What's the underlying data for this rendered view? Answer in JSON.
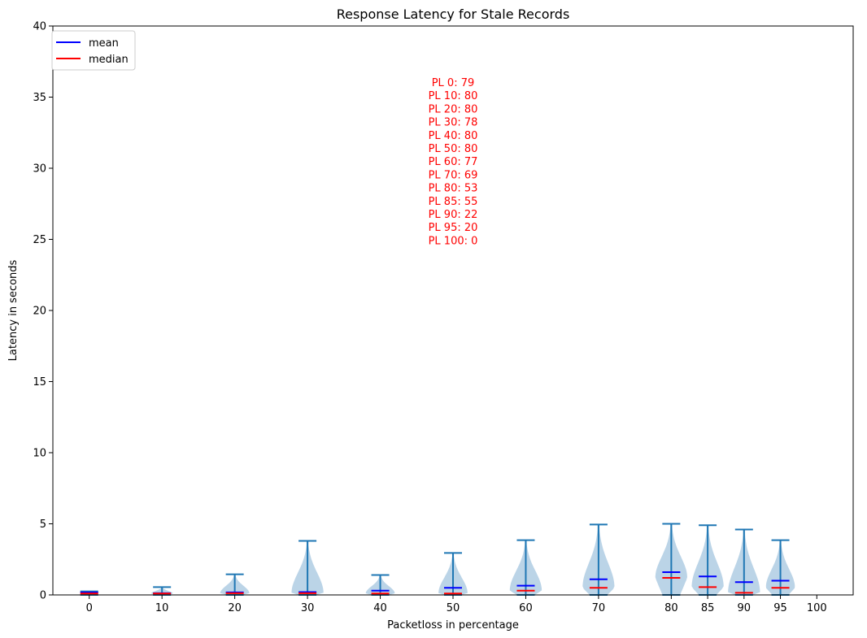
{
  "chart_data": {
    "type": "violin",
    "title": "Response Latency for Stale Records",
    "xlabel": "Packetloss in percentage",
    "ylabel": "Latency in seconds",
    "ylim": [
      0,
      40
    ],
    "xlim": [
      -5,
      105
    ],
    "y_ticks": [
      0,
      5,
      10,
      15,
      20,
      25,
      30,
      35,
      40
    ],
    "grid": false,
    "legend": {
      "placement": "top-left",
      "entries": [
        {
          "label": "mean",
          "color": "#0000ff"
        },
        {
          "label": "median",
          "color": "#ff0000"
        }
      ]
    },
    "annotation_color": "#ff0000",
    "annotations": [
      "PL 0: 79",
      "PL 10: 80",
      "PL 20: 80",
      "PL 30: 78",
      "PL 40: 80",
      "PL 50: 80",
      "PL 60: 77",
      "PL 70: 69",
      "PL 80: 53",
      "PL 85: 55",
      "PL 90: 22",
      "PL 95: 20",
      "PL 100: 0"
    ],
    "colors": {
      "body": "#1f77b4",
      "fill": "#b4cfe4",
      "mean": "#0000ff",
      "median": "#ff0000"
    },
    "categories": [
      "0",
      "10",
      "20",
      "30",
      "40",
      "50",
      "60",
      "70",
      "80",
      "85",
      "90",
      "95",
      "100"
    ],
    "groups": [
      {
        "x": 0,
        "min": 0.0,
        "max": 0.25,
        "mean": 0.18,
        "median": 0.1,
        "width": 0.4
      },
      {
        "x": 10,
        "min": 0.0,
        "max": 0.55,
        "mean": 0.12,
        "median": 0.1,
        "width": 1.5
      },
      {
        "x": 20,
        "min": 0.0,
        "max": 1.45,
        "mean": 0.18,
        "median": 0.12,
        "width": 2.0
      },
      {
        "x": 30,
        "min": 0.0,
        "max": 3.8,
        "mean": 0.2,
        "median": 0.12,
        "width": 2.2
      },
      {
        "x": 40,
        "min": 0.0,
        "max": 1.4,
        "mean": 0.3,
        "median": 0.1,
        "width": 2.0
      },
      {
        "x": 50,
        "min": 0.0,
        "max": 2.95,
        "mean": 0.5,
        "median": 0.1,
        "width": 2.0
      },
      {
        "x": 60,
        "min": 0.0,
        "max": 3.85,
        "mean": 0.65,
        "median": 0.3,
        "width": 2.2
      },
      {
        "x": 70,
        "min": 0.0,
        "max": 4.95,
        "mean": 1.1,
        "median": 0.5,
        "width": 2.2
      },
      {
        "x": 80,
        "min": 0.0,
        "max": 5.0,
        "mean": 1.6,
        "median": 1.2,
        "width": 2.2
      },
      {
        "x": 85,
        "min": 0.0,
        "max": 4.9,
        "mean": 1.3,
        "median": 0.55,
        "width": 2.2
      },
      {
        "x": 90,
        "min": 0.0,
        "max": 4.6,
        "mean": 0.9,
        "median": 0.15,
        "width": 2.2
      },
      {
        "x": 95,
        "min": 0.0,
        "max": 3.85,
        "mean": 1.0,
        "median": 0.5,
        "width": 2.0
      },
      {
        "x": 100,
        "min": null,
        "max": null,
        "mean": null,
        "median": null,
        "width": 0
      }
    ]
  }
}
